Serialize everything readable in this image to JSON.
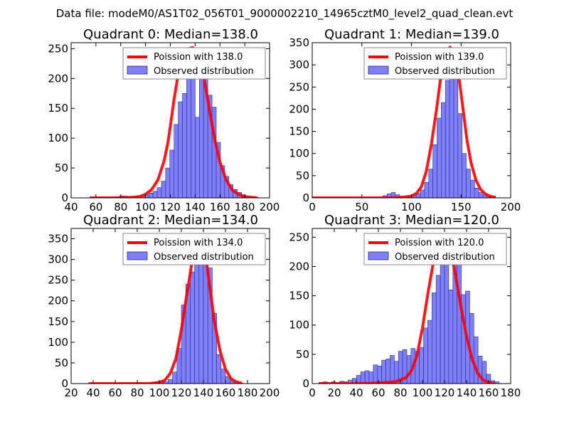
{
  "figure": {
    "suptitle": "Data file: modeM0/AS1T02_056T01_9000002210_14965cztM0_level2_quad_clean.evt"
  },
  "colors": {
    "bar_fill": "#7f7ff7",
    "bar_edge": "#2a2a8f",
    "curve": "#ff0000",
    "legend_edge": "#888888"
  },
  "chart_data": [
    {
      "type": "bar",
      "title": "Quadrant 0: Median=138.0",
      "xlim": [
        40,
        200
      ],
      "ylim": [
        0,
        260
      ],
      "xticks": [
        40,
        60,
        80,
        100,
        120,
        140,
        160,
        180,
        200
      ],
      "yticks": [
        0,
        50,
        100,
        150,
        200,
        250
      ],
      "legend": [
        "Poission with 138.0",
        "Observed distribution"
      ],
      "legend_loc": "upper right",
      "median": 138.0,
      "bin_width": 3.4,
      "bins": [
        [
          55,
          1
        ],
        [
          58.4,
          1
        ],
        [
          61.8,
          1
        ],
        [
          65.2,
          1
        ],
        [
          68.6,
          1
        ],
        [
          72,
          1
        ],
        [
          75.4,
          2
        ],
        [
          78.8,
          3
        ],
        [
          82.2,
          3
        ],
        [
          85.6,
          2
        ],
        [
          89,
          2
        ],
        [
          92.4,
          3
        ],
        [
          95.8,
          4
        ],
        [
          99.2,
          5
        ],
        [
          102.6,
          8
        ],
        [
          106,
          11
        ],
        [
          109.4,
          17
        ],
        [
          112.8,
          28
        ],
        [
          116.2,
          50
        ],
        [
          119.6,
          80
        ],
        [
          123,
          123
        ],
        [
          126.4,
          161
        ],
        [
          129.8,
          175
        ],
        [
          133.2,
          205
        ],
        [
          136.6,
          240
        ],
        [
          140,
          135
        ],
        [
          143.4,
          250
        ],
        [
          146.8,
          215
        ],
        [
          150.2,
          172
        ],
        [
          153.6,
          152
        ],
        [
          157,
          93
        ],
        [
          160.4,
          54
        ],
        [
          163.8,
          36
        ],
        [
          167.2,
          22
        ],
        [
          170.6,
          14
        ],
        [
          174,
          9
        ],
        [
          177.4,
          5
        ],
        [
          180.8,
          3
        ],
        [
          184.2,
          2
        ],
        [
          187.6,
          1
        ]
      ],
      "curve_x": [
        55,
        60,
        70,
        80,
        90,
        95,
        100,
        105,
        110,
        115,
        118,
        120,
        123,
        126,
        129,
        132,
        135,
        138,
        141,
        144,
        147,
        150,
        153,
        156,
        160,
        165,
        170,
        175,
        180,
        190
      ],
      "curve_y": [
        0,
        0,
        0,
        0,
        1,
        2,
        6,
        14,
        30,
        62,
        92,
        120,
        165,
        203,
        233,
        248,
        250,
        252,
        246,
        230,
        203,
        167,
        130,
        96,
        60,
        30,
        13,
        6,
        2,
        0
      ]
    },
    {
      "type": "bar",
      "title": "Quadrant 1: Median=139.0",
      "xlim": [
        0,
        200
      ],
      "ylim": [
        0,
        350
      ],
      "xticks": [
        0,
        50,
        100,
        150,
        200
      ],
      "yticks": [
        0,
        50,
        100,
        150,
        200,
        250,
        300,
        350
      ],
      "legend": [
        "Poission with 139.0",
        "Observed distribution"
      ],
      "legend_loc": "upper right",
      "median": 139.0,
      "bin_width": 4.2,
      "bins": [
        [
          67,
          2
        ],
        [
          71.2,
          5
        ],
        [
          75.4,
          9
        ],
        [
          79.6,
          12
        ],
        [
          83.8,
          7
        ],
        [
          88,
          4
        ],
        [
          92.2,
          3
        ],
        [
          96.4,
          4
        ],
        [
          100.6,
          5
        ],
        [
          104.8,
          10
        ],
        [
          109,
          18
        ],
        [
          113.2,
          35
        ],
        [
          117.4,
          65
        ],
        [
          121.6,
          120
        ],
        [
          125.8,
          180
        ],
        [
          130,
          215
        ],
        [
          134.2,
          265
        ],
        [
          138.4,
          335
        ],
        [
          142.6,
          320
        ],
        [
          146.8,
          190
        ],
        [
          151,
          100
        ],
        [
          155.2,
          65
        ],
        [
          159.4,
          40
        ],
        [
          163.6,
          22
        ],
        [
          167.8,
          12
        ],
        [
          172,
          7
        ],
        [
          176.2,
          4
        ],
        [
          180.4,
          2
        ]
      ],
      "curve_x": [
        0,
        30,
        60,
        80,
        90,
        100,
        105,
        110,
        115,
        120,
        125,
        130,
        134,
        139,
        144,
        148,
        152,
        156,
        160,
        165,
        170,
        175,
        180,
        185
      ],
      "curve_y": [
        0,
        0,
        0,
        0,
        1,
        4,
        10,
        25,
        60,
        120,
        195,
        280,
        325,
        340,
        320,
        270,
        200,
        130,
        80,
        40,
        18,
        8,
        3,
        1
      ]
    },
    {
      "type": "bar",
      "title": "Quadrant 2: Median=134.0",
      "xlim": [
        20,
        200
      ],
      "ylim": [
        0,
        375
      ],
      "xticks": [
        20,
        40,
        60,
        80,
        100,
        120,
        140,
        160,
        180,
        200
      ],
      "yticks": [
        0,
        50,
        100,
        150,
        200,
        250,
        300,
        350
      ],
      "legend": [
        "Poission with 134.0",
        "Observed distribution"
      ],
      "legend_loc": "upper right",
      "median": 134.0,
      "bin_width": 4,
      "bins": [
        [
          36,
          1
        ],
        [
          40,
          1
        ],
        [
          44,
          1
        ],
        [
          48,
          1
        ],
        [
          52,
          1
        ],
        [
          56,
          1
        ],
        [
          60,
          1
        ],
        [
          64,
          1
        ],
        [
          68,
          1
        ],
        [
          72,
          1
        ],
        [
          76,
          1
        ],
        [
          80,
          2
        ],
        [
          84,
          1
        ],
        [
          88,
          1
        ],
        [
          92,
          1
        ],
        [
          96,
          2
        ],
        [
          100,
          3
        ],
        [
          104,
          4
        ],
        [
          108,
          10
        ],
        [
          112,
          28
        ],
        [
          116,
          85
        ],
        [
          120,
          190
        ],
        [
          124,
          240
        ],
        [
          128,
          270
        ],
        [
          132,
          300
        ],
        [
          136,
          360
        ],
        [
          140,
          300
        ],
        [
          144,
          280
        ],
        [
          148,
          170
        ],
        [
          152,
          70
        ],
        [
          156,
          35
        ],
        [
          160,
          17
        ],
        [
          164,
          7
        ],
        [
          168,
          3
        ],
        [
          172,
          1
        ]
      ],
      "curve_x": [
        36,
        60,
        80,
        90,
        100,
        105,
        110,
        115,
        120,
        124,
        128,
        131,
        134,
        137,
        140,
        143,
        146,
        150,
        155,
        160,
        165,
        170,
        175
      ],
      "curve_y": [
        0,
        0,
        0,
        0,
        3,
        8,
        25,
        60,
        130,
        200,
        265,
        320,
        345,
        355,
        340,
        290,
        230,
        150,
        80,
        35,
        12,
        4,
        1
      ]
    },
    {
      "type": "bar",
      "title": "Quadrant 3: Median=120.0",
      "xlim": [
        0,
        180
      ],
      "ylim": [
        0,
        265
      ],
      "xticks": [
        0,
        20,
        40,
        60,
        80,
        100,
        120,
        140,
        160,
        180
      ],
      "yticks": [
        0,
        50,
        100,
        150,
        200,
        250
      ],
      "legend": [
        "Poission with 120.0",
        "Observed distribution"
      ],
      "legend_loc": "upper right",
      "median": 120.0,
      "bin_width": 3.8,
      "bins": [
        [
          6,
          2
        ],
        [
          9.8,
          3
        ],
        [
          13.6,
          1
        ],
        [
          17.4,
          3
        ],
        [
          21.2,
          2
        ],
        [
          25,
          4
        ],
        [
          28.8,
          3
        ],
        [
          32.6,
          6
        ],
        [
          36.4,
          9
        ],
        [
          40.2,
          14
        ],
        [
          44,
          20
        ],
        [
          47.8,
          22
        ],
        [
          51.6,
          20
        ],
        [
          55.4,
          32
        ],
        [
          59.2,
          30
        ],
        [
          63,
          40
        ],
        [
          66.8,
          42
        ],
        [
          70.6,
          48
        ],
        [
          74.4,
          38
        ],
        [
          78.2,
          55
        ],
        [
          82,
          58
        ],
        [
          85.8,
          48
        ],
        [
          89.6,
          60
        ],
        [
          93.4,
          55
        ],
        [
          97.2,
          62
        ],
        [
          101,
          95
        ],
        [
          104.8,
          108
        ],
        [
          108.6,
          155
        ],
        [
          112.4,
          185
        ],
        [
          116.2,
          245
        ],
        [
          120,
          218
        ],
        [
          123.8,
          160
        ],
        [
          127.6,
          232
        ],
        [
          131.4,
          225
        ],
        [
          135.2,
          152
        ],
        [
          139,
          158
        ],
        [
          142.8,
          120
        ],
        [
          146.6,
          80
        ],
        [
          150.4,
          47
        ],
        [
          154.2,
          38
        ],
        [
          158,
          16
        ],
        [
          161.8,
          5
        ],
        [
          165.6,
          3
        ]
      ],
      "curve_x": [
        6,
        40,
        60,
        75,
        85,
        90,
        95,
        100,
        105,
        110,
        114,
        118,
        120,
        122,
        126,
        130,
        135,
        140,
        145,
        150,
        155,
        160,
        165
      ],
      "curve_y": [
        0,
        0,
        1,
        3,
        10,
        22,
        48,
        95,
        155,
        208,
        240,
        252,
        253,
        248,
        225,
        185,
        130,
        80,
        42,
        18,
        6,
        2,
        0
      ]
    }
  ]
}
